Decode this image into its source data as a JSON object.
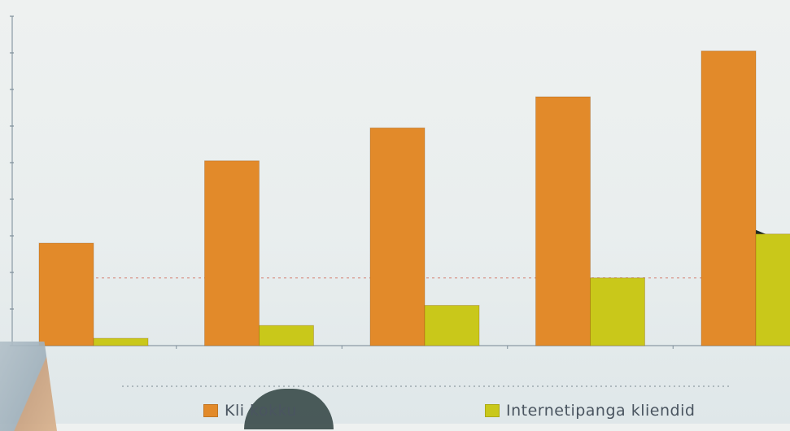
{
  "chart_data": {
    "type": "bar",
    "categories": [
      "",
      "",
      "",
      "",
      ""
    ],
    "series": [
      {
        "name": "Kliendid kokku",
        "color": "#e28a2a",
        "values": [
          2.8,
          5.05,
          5.95,
          6.8,
          8.05
        ]
      },
      {
        "name": "Internetipanga kliendid",
        "color": "#c9c81a",
        "values": [
          0.2,
          0.55,
          1.1,
          1.85,
          3.05
        ]
      }
    ],
    "ylim": [
      0,
      9
    ],
    "yticks": [
      0,
      1,
      2,
      3,
      4,
      5,
      6,
      7,
      8,
      9
    ],
    "reference_line": 1.85,
    "title": "",
    "xlabel": "",
    "ylabel": "",
    "grid": false,
    "legend_position": "bottom"
  },
  "legend": {
    "item1_label": "Kli     kokku",
    "item2_label": "Internetipanga kliendid"
  }
}
